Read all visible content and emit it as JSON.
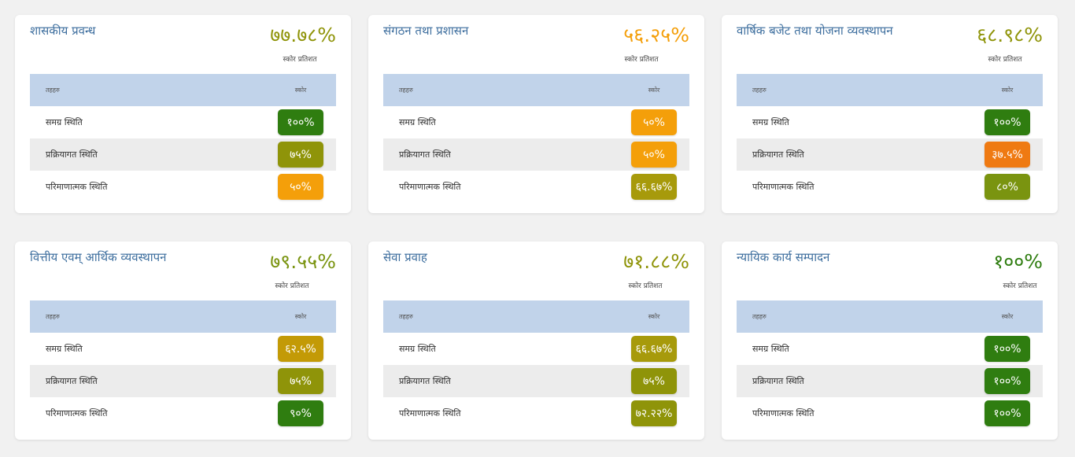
{
  "colors": {
    "dark_green": "#2f7d10",
    "olive_green": "#7a9410",
    "olive": "#8f9409",
    "olive_gold": "#a79a0b",
    "gold": "#c39a06",
    "amber": "#f49f0a",
    "orange": "#ef7a12",
    "title_blue": "#3d6e9e",
    "header_bg": "#c1d3ea"
  },
  "cards": [
    {
      "title": "शासकीय प्रवन्ध",
      "score": "७७.७८%",
      "score_color": "#8f9409",
      "subtitle": "स्कोर प्रतिशत",
      "col_header_left": "तहहरु",
      "col_header_right": "स्कोर",
      "rows": [
        {
          "label": "समग्र स्थिति",
          "value": "१००%",
          "color": "#2f7d10"
        },
        {
          "label": "प्रक्रियागत स्थिति",
          "value": "७५%",
          "color": "#8f9409"
        },
        {
          "label": "परिमाणात्मक स्थिति",
          "value": "५०%",
          "color": "#f49f0a"
        }
      ]
    },
    {
      "title": "संगठन तथा प्रशासन",
      "score": "५६.२५%",
      "score_color": "#f49f0a",
      "subtitle": "स्कोर प्रतिशत",
      "col_header_left": "तहहरु",
      "col_header_right": "स्कोर",
      "rows": [
        {
          "label": "समग्र स्थिति",
          "value": "५०%",
          "color": "#f49f0a"
        },
        {
          "label": "प्रक्रियागत स्थिति",
          "value": "५०%",
          "color": "#f49f0a"
        },
        {
          "label": "परिमाणात्मक स्थिति",
          "value": "६६.६७%",
          "color": "#a79a0b"
        }
      ]
    },
    {
      "title": "वार्षिक बजेट तथा योजना व्यवस्थापन",
      "score": "६८.९८%",
      "score_color": "#8f9409",
      "subtitle": "स्कोर प्रतिशत",
      "col_header_left": "तहहरु",
      "col_header_right": "स्कोर",
      "rows": [
        {
          "label": "समग्र स्थिति",
          "value": "१००%",
          "color": "#2f7d10"
        },
        {
          "label": "प्रक्रियागत स्थिति",
          "value": "३७.५%",
          "color": "#ef7a12"
        },
        {
          "label": "परिमाणात्मक स्थिति",
          "value": "८०%",
          "color": "#7a9410"
        }
      ]
    },
    {
      "title": "वित्तीय एवम् आर्थिक व्यवस्थापन",
      "score": "७९.५५%",
      "score_color": "#7a9410",
      "subtitle": "स्कोर प्रतिशत",
      "col_header_left": "तहहरु",
      "col_header_right": "स्कोर",
      "rows": [
        {
          "label": "समग्र स्थिति",
          "value": "६२.५%",
          "color": "#c39a06"
        },
        {
          "label": "प्रक्रियागत स्थिति",
          "value": "७५%",
          "color": "#8f9409"
        },
        {
          "label": "परिमाणात्मक स्थिति",
          "value": "९०%",
          "color": "#2f7d10"
        }
      ]
    },
    {
      "title": "सेवा प्रवाह",
      "score": "७१.८८%",
      "score_color": "#8f9409",
      "subtitle": "स्कोर प्रतिशत",
      "col_header_left": "तहहरु",
      "col_header_right": "स्कोर",
      "rows": [
        {
          "label": "समग्र स्थिति",
          "value": "६६.६७%",
          "color": "#a79a0b"
        },
        {
          "label": "प्रक्रियागत स्थिति",
          "value": "७५%",
          "color": "#8f9409"
        },
        {
          "label": "परिमाणात्मक स्थिति",
          "value": "७२.२२%",
          "color": "#8f9409"
        }
      ]
    },
    {
      "title": "न्यायिक कार्य सम्पादन",
      "score": "१००%",
      "score_color": "#2f7d10",
      "subtitle": "स्कोर प्रतिशत",
      "col_header_left": "तहहरु",
      "col_header_right": "स्कोर",
      "rows": [
        {
          "label": "समग्र स्थिति",
          "value": "१००%",
          "color": "#2f7d10"
        },
        {
          "label": "प्रक्रियागत स्थिति",
          "value": "१००%",
          "color": "#2f7d10"
        },
        {
          "label": "परिमाणात्मक स्थिति",
          "value": "१००%",
          "color": "#2f7d10"
        }
      ]
    }
  ]
}
